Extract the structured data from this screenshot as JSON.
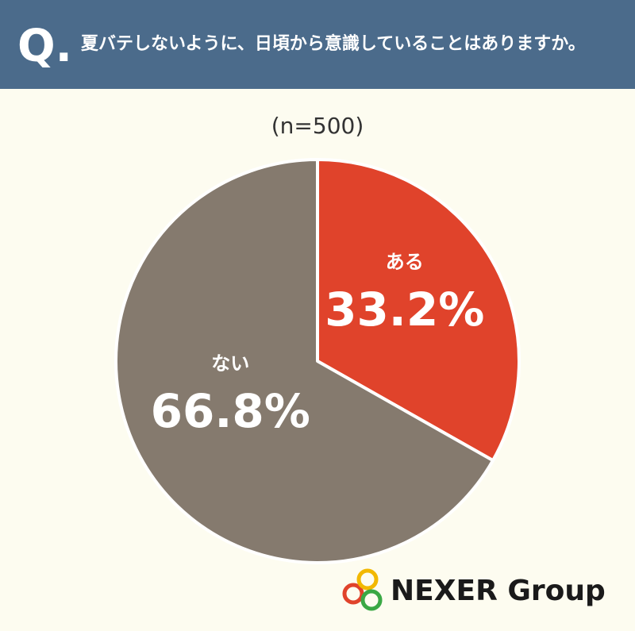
{
  "chart_data": {
    "type": "pie",
    "title_prefix": "Q.",
    "title": "夏バテしないように、日頃から意識していることはありますか。",
    "subtitle": "(n=500)",
    "categories": [
      "ある",
      "ない"
    ],
    "values": [
      33.2,
      66.8
    ],
    "value_labels": [
      "33.2%",
      "66.8%"
    ],
    "colors": [
      "#e0432b",
      "#857a6e"
    ],
    "logo": "NEXER Group"
  }
}
